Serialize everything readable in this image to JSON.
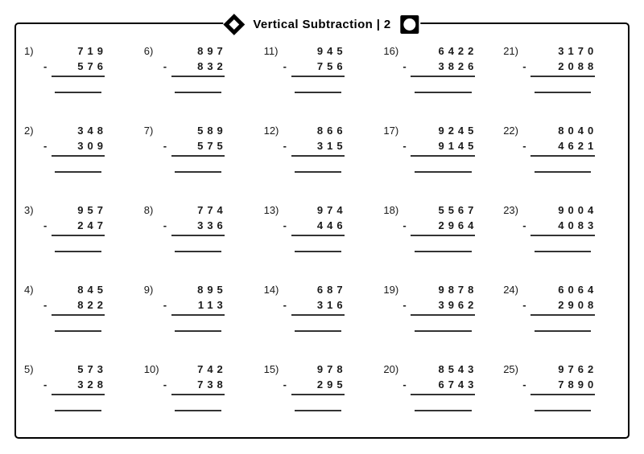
{
  "header": {
    "title": "Vertical Subtraction | 2",
    "left_icon": "diamond-icon",
    "right_icon": "circle-in-square-icon"
  },
  "problems": [
    {
      "label": "1)",
      "minuend": "719",
      "op": "-",
      "subtrahend": "576"
    },
    {
      "label": "2)",
      "minuend": "348",
      "op": "-",
      "subtrahend": "309"
    },
    {
      "label": "3)",
      "minuend": "957",
      "op": "-",
      "subtrahend": "247"
    },
    {
      "label": "4)",
      "minuend": "845",
      "op": "-",
      "subtrahend": "822"
    },
    {
      "label": "5)",
      "minuend": "573",
      "op": "-",
      "subtrahend": "328"
    },
    {
      "label": "6)",
      "minuend": "897",
      "op": "-",
      "subtrahend": "832"
    },
    {
      "label": "7)",
      "minuend": "589",
      "op": "-",
      "subtrahend": "575"
    },
    {
      "label": "8)",
      "minuend": "774",
      "op": "-",
      "subtrahend": "336"
    },
    {
      "label": "9)",
      "minuend": "895",
      "op": "-",
      "subtrahend": "113"
    },
    {
      "label": "10)",
      "minuend": "742",
      "op": "-",
      "subtrahend": "738"
    },
    {
      "label": "11)",
      "minuend": "945",
      "op": "-",
      "subtrahend": "756"
    },
    {
      "label": "12)",
      "minuend": "866",
      "op": "-",
      "subtrahend": "315"
    },
    {
      "label": "13)",
      "minuend": "974",
      "op": "-",
      "subtrahend": "446"
    },
    {
      "label": "14)",
      "minuend": "687",
      "op": "-",
      "subtrahend": "316"
    },
    {
      "label": "15)",
      "minuend": "978",
      "op": "-",
      "subtrahend": "295"
    },
    {
      "label": "16)",
      "minuend": "6422",
      "op": "-",
      "subtrahend": "3826"
    },
    {
      "label": "17)",
      "minuend": "9245",
      "op": "-",
      "subtrahend": "9145"
    },
    {
      "label": "18)",
      "minuend": "5567",
      "op": "-",
      "subtrahend": "2964"
    },
    {
      "label": "19)",
      "minuend": "9878",
      "op": "-",
      "subtrahend": "3962"
    },
    {
      "label": "20)",
      "minuend": "8543",
      "op": "-",
      "subtrahend": "6743"
    },
    {
      "label": "21)",
      "minuend": "3170",
      "op": "-",
      "subtrahend": "2088"
    },
    {
      "label": "22)",
      "minuend": "8040",
      "op": "-",
      "subtrahend": "4621"
    },
    {
      "label": "23)",
      "minuend": "9004",
      "op": "-",
      "subtrahend": "4083"
    },
    {
      "label": "24)",
      "minuend": "6064",
      "op": "-",
      "subtrahend": "2908"
    },
    {
      "label": "25)",
      "minuend": "9762",
      "op": "-",
      "subtrahend": "7890"
    }
  ]
}
